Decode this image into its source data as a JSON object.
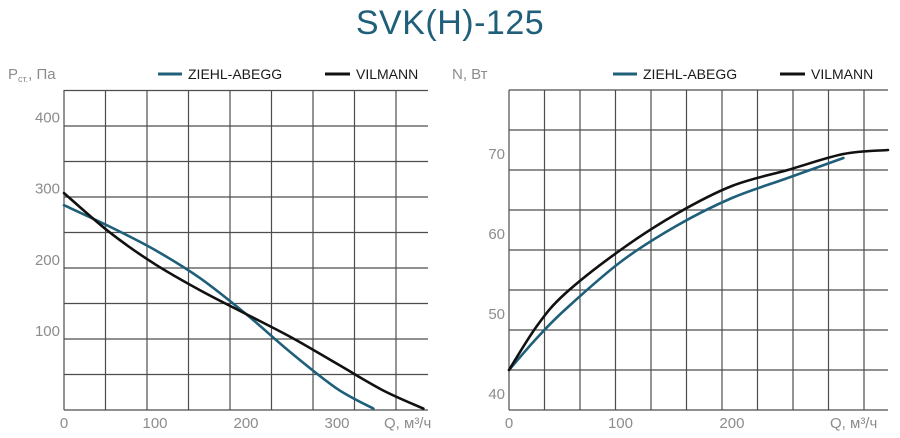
{
  "title": "SVK(H)-125",
  "colors": {
    "ziehl": "#1f5f7a",
    "vilmann": "#111111"
  },
  "chart_data": [
    {
      "type": "line",
      "ylabel_main": "P",
      "ylabel_sub": "ст.",
      "ylabel_rest": ", Па",
      "xlabel": "Q, м³/ч",
      "xlim": [
        0,
        400
      ],
      "ylim": [
        0,
        450
      ],
      "xticks": [
        0,
        100,
        200,
        300
      ],
      "yticks": [
        100,
        200,
        300,
        400
      ],
      "grid": true,
      "legend": "top",
      "series": [
        {
          "name": "ZIEHL-ABEGG",
          "color_key": "ziehl",
          "x": [
            0,
            50,
            100,
            150,
            200,
            250,
            300,
            340
          ],
          "y": [
            288,
            258,
            225,
            185,
            135,
            80,
            30,
            2
          ]
        },
        {
          "name": "VILMANN",
          "color_key": "vilmann",
          "x": [
            0,
            50,
            100,
            150,
            200,
            250,
            300,
            350,
            395
          ],
          "y": [
            305,
            250,
            205,
            168,
            135,
            102,
            65,
            28,
            2
          ]
        }
      ]
    },
    {
      "type": "line",
      "ylabel": "N, Вт",
      "xlabel": "Q, м³/ч",
      "xlim": [
        0,
        340
      ],
      "ylim": [
        39,
        79
      ],
      "xticks": [
        0,
        100,
        200
      ],
      "yticks": [
        40,
        50,
        60,
        70
      ],
      "grid": true,
      "legend": "top",
      "series": [
        {
          "name": "ZIEHL-ABEGG",
          "color_key": "ziehl",
          "x": [
            0,
            25,
            50,
            100,
            150,
            200,
            250,
            300
          ],
          "y": [
            44,
            48,
            51.5,
            57.5,
            62,
            65.5,
            68,
            70.5
          ]
        },
        {
          "name": "VILMANN",
          "color_key": "vilmann",
          "x": [
            0,
            25,
            50,
            100,
            150,
            200,
            250,
            300,
            340
          ],
          "y": [
            44,
            49.5,
            53.5,
            59,
            63.5,
            67,
            69,
            71,
            71.5
          ]
        }
      ]
    }
  ]
}
